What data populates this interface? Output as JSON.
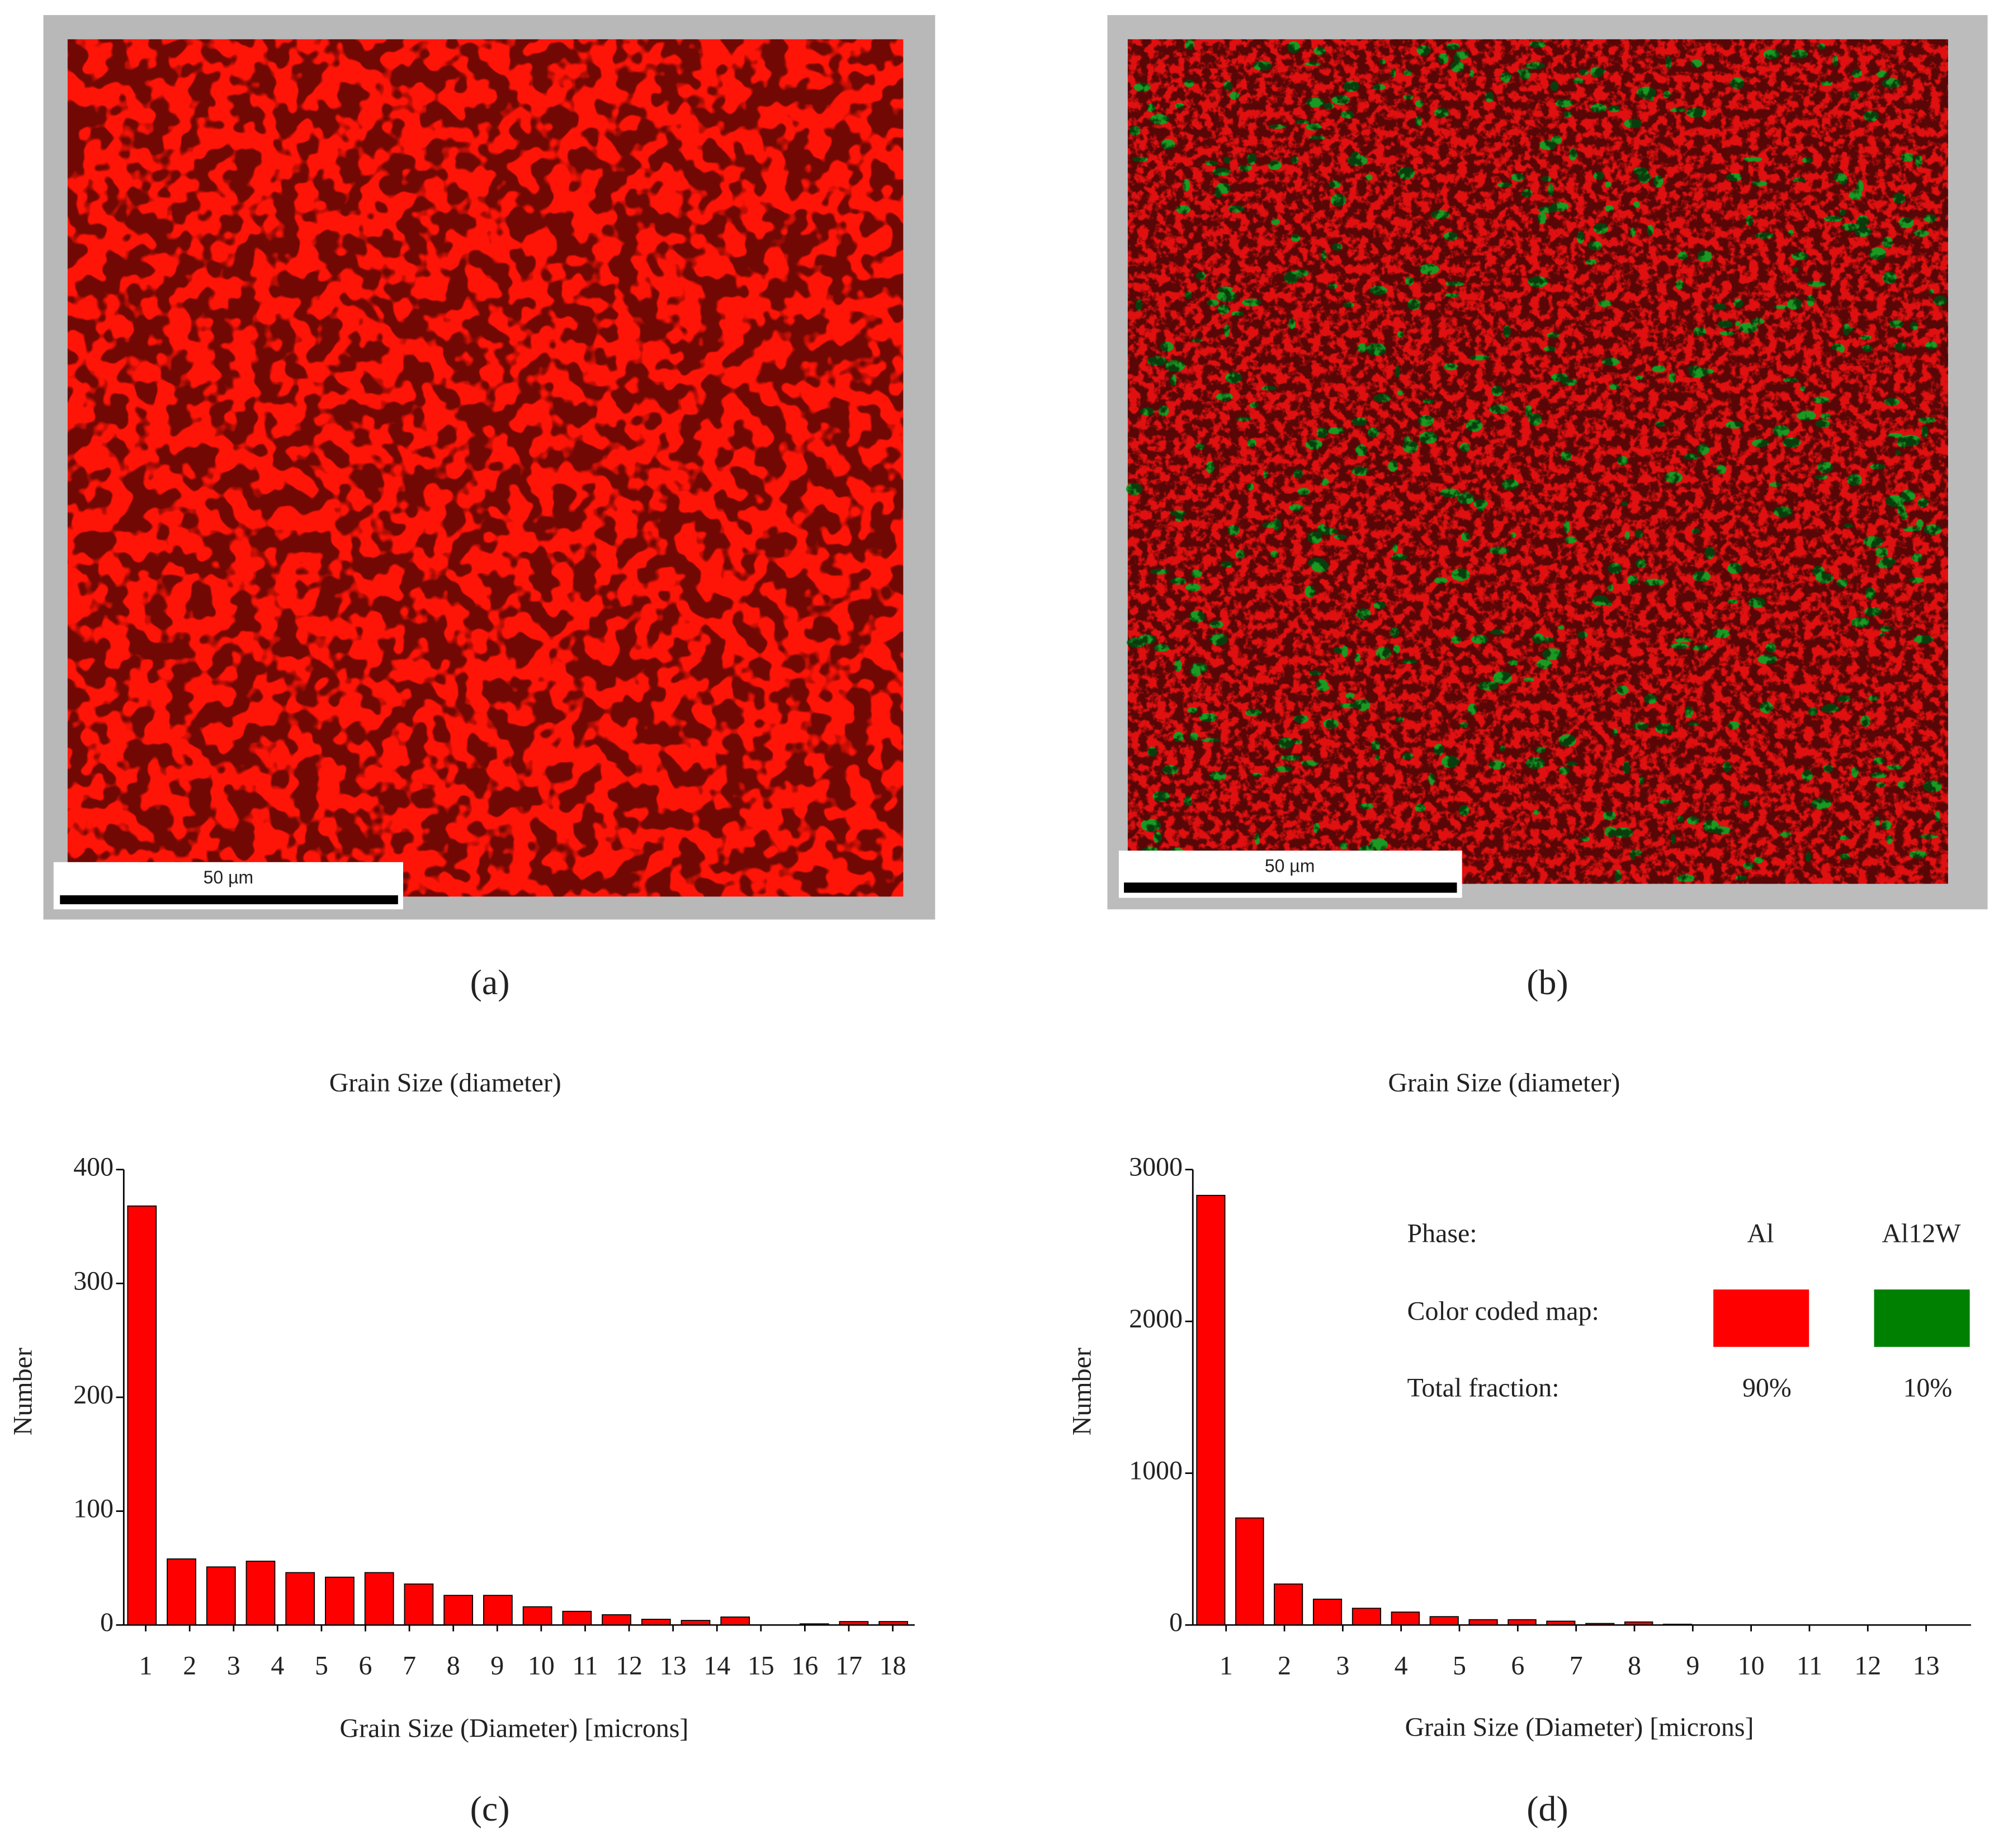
{
  "panels": [
    {
      "label": "(a)",
      "scale_bar": "50 µm"
    },
    {
      "label": "(b)",
      "scale_bar": "50 µm"
    },
    {
      "label": "(c)"
    },
    {
      "label": "(d)"
    }
  ],
  "chart_data": [
    {
      "type": "histogram",
      "title": "Grain Size (diameter)",
      "xlabel": "Grain Size (Diameter) [microns]",
      "ylabel": "Number",
      "bins": [
        0.5,
        1.4,
        2.3,
        3.2,
        4.1,
        5.0,
        5.9,
        6.8,
        7.7,
        8.6,
        9.5,
        10.4,
        11.3,
        12.2,
        13.1,
        14.0,
        14.9,
        15.8,
        16.7,
        17.6,
        18.5
      ],
      "values": [
        368,
        58,
        51,
        56,
        46,
        42,
        46,
        36,
        26,
        26,
        16,
        12,
        9,
        5,
        4,
        7,
        0,
        1,
        3,
        3
      ],
      "color": "#ff0000",
      "xlim": [
        0.5,
        18.5
      ],
      "xticks": [
        1,
        2,
        3,
        4,
        5,
        6,
        7,
        8,
        9,
        10,
        11,
        12,
        13,
        14,
        15,
        16,
        17,
        18
      ],
      "ylim": [
        0,
        400
      ],
      "yticks": [
        0,
        100,
        200,
        300,
        400
      ]
    },
    {
      "type": "histogram",
      "title": "Grain Size (diameter)",
      "xlabel": "Grain Size (Diameter) [microns]",
      "ylabel": "Number",
      "bins": [
        0.43,
        1.1,
        1.76,
        2.43,
        3.1,
        3.77,
        4.43,
        5.1,
        5.77,
        6.43,
        7.1,
        7.77,
        8.43,
        9.1,
        9.77,
        10.43,
        11.1,
        11.77,
        12.43,
        13.1,
        13.77
      ],
      "values": [
        2830,
        705,
        270,
        170,
        110,
        85,
        55,
        35,
        35,
        25,
        10,
        20,
        5,
        0,
        0,
        0,
        0,
        0,
        0,
        0
      ],
      "color": "#ff0000",
      "xlim": [
        0.43,
        13.77
      ],
      "xticks": [
        1,
        2,
        3,
        4,
        5,
        6,
        7,
        8,
        9,
        10,
        11,
        12,
        13
      ],
      "ylim": [
        0,
        3000
      ],
      "yticks": [
        0,
        1000,
        2000,
        3000
      ],
      "legend": {
        "phase_header": "Phase:",
        "color_header": "Color coded map:",
        "fraction_header": "Total fraction:",
        "phases": [
          {
            "name": "Al",
            "color": "#ff0000",
            "fraction": "90%"
          },
          {
            "name": "Al12W",
            "color": "#008000",
            "fraction": "10%"
          }
        ]
      }
    }
  ]
}
